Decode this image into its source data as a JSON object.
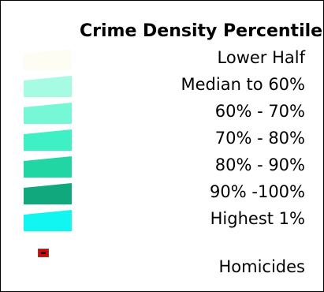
{
  "legend": {
    "title": "Crime Density Percentile",
    "classes": [
      {
        "label": "Lower Half",
        "color": "#fdfdf3"
      },
      {
        "label": "Median to 60%",
        "color": "#a6fce2"
      },
      {
        "label": "60% - 70%",
        "color": "#76f8d6"
      },
      {
        "label": "70% - 80%",
        "color": "#3ef0c4"
      },
      {
        "label": "80% - 90%",
        "color": "#22d6a4"
      },
      {
        "label": "90% -100%",
        "color": "#10a87c"
      },
      {
        "label": "Highest 1%",
        "color": "#12f6f2"
      }
    ],
    "homicides": {
      "label": "Homicides",
      "marker_color": "#e60000"
    }
  }
}
